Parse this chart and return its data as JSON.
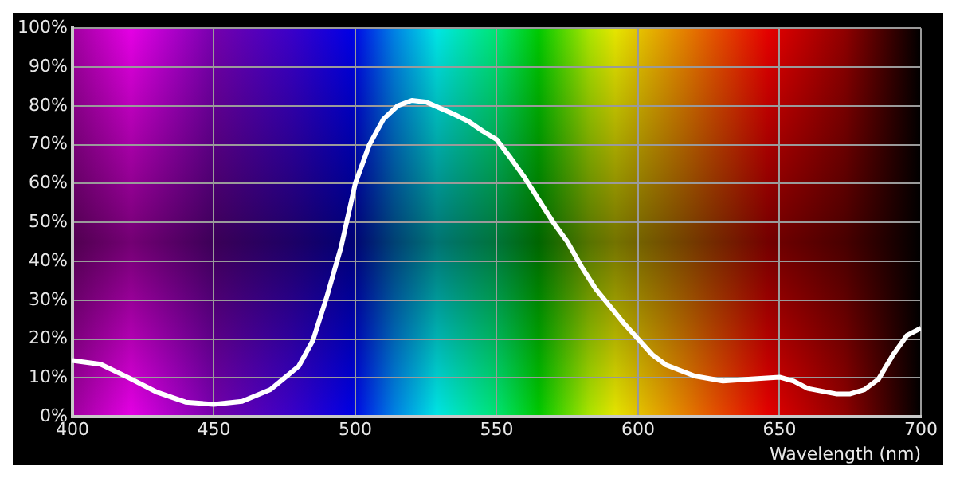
{
  "chart_data": {
    "type": "line",
    "xlabel": "Wavelength (nm)",
    "x": [
      400,
      410,
      420,
      430,
      440,
      450,
      460,
      470,
      475,
      480,
      485,
      490,
      495,
      500,
      505,
      510,
      515,
      520,
      525,
      530,
      535,
      540,
      545,
      550,
      555,
      560,
      565,
      570,
      575,
      580,
      585,
      590,
      595,
      600,
      605,
      610,
      620,
      630,
      640,
      650,
      655,
      660,
      670,
      675,
      680,
      685,
      690,
      695,
      700
    ],
    "series": [
      {
        "color": "#ffffff",
        "values": [
          14.5,
          13.5,
          10,
          6.3,
          3.8,
          3.2,
          4,
          7,
          10,
          13,
          19.6,
          31,
          43.7,
          60,
          70,
          76.6,
          80,
          81.4,
          81,
          79.4,
          77.8,
          76,
          73.5,
          71.3,
          66.5,
          61.4,
          55.7,
          50,
          45,
          38.6,
          32.9,
          28.5,
          24,
          20,
          16,
          13.3,
          10.5,
          9.2,
          9.7,
          10.2,
          9.2,
          7.3,
          5.9,
          5.9,
          7,
          9.7,
          15.8,
          20.9,
          22.8
        ]
      }
    ],
    "xlim": [
      400,
      700
    ],
    "xticks": [
      400,
      450,
      500,
      550,
      600,
      650,
      700
    ],
    "ylim": [
      0,
      100
    ],
    "yticks": [
      {
        "value": 0,
        "label": "0%"
      },
      {
        "value": 10,
        "label": "10%"
      },
      {
        "value": 20,
        "label": "20%"
      },
      {
        "value": 30,
        "label": "30%"
      },
      {
        "value": 40,
        "label": "40%"
      },
      {
        "value": 50,
        "label": "50%"
      },
      {
        "value": 60,
        "label": "60%"
      },
      {
        "value": 70,
        "label": "70%"
      },
      {
        "value": 80,
        "label": "80%"
      },
      {
        "value": 90,
        "label": "90%"
      },
      {
        "value": 100,
        "label": "100%"
      }
    ],
    "grid": true,
    "marker": "none",
    "line_style": "solid"
  }
}
